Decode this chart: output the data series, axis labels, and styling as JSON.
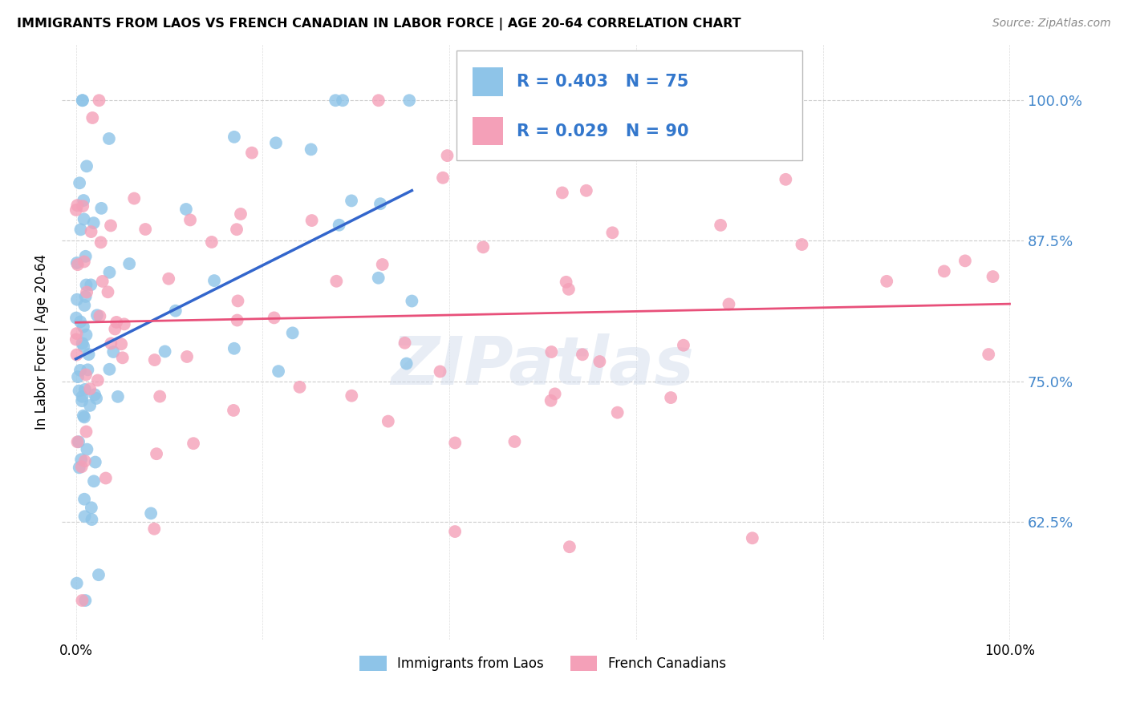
{
  "title": "IMMIGRANTS FROM LAOS VS FRENCH CANADIAN IN LABOR FORCE | AGE 20-64 CORRELATION CHART",
  "source": "Source: ZipAtlas.com",
  "ylabel": "In Labor Force | Age 20-64",
  "legend_label1": "Immigrants from Laos",
  "legend_label2": "French Canadians",
  "R1": 0.403,
  "N1": 75,
  "R2": 0.029,
  "N2": 90,
  "color1": "#8ec4e8",
  "color2": "#f4a0b8",
  "trendline1_color": "#3366cc",
  "trendline2_color": "#e8507a",
  "watermark": "ZIPatlas",
  "ytick_values": [
    0.625,
    0.75,
    0.875,
    1.0
  ],
  "ytick_labels": [
    "62.5%",
    "75.0%",
    "87.5%",
    "100.0%"
  ],
  "ymin": 0.52,
  "ymax": 1.05,
  "xmin": -0.015,
  "xmax": 1.015
}
